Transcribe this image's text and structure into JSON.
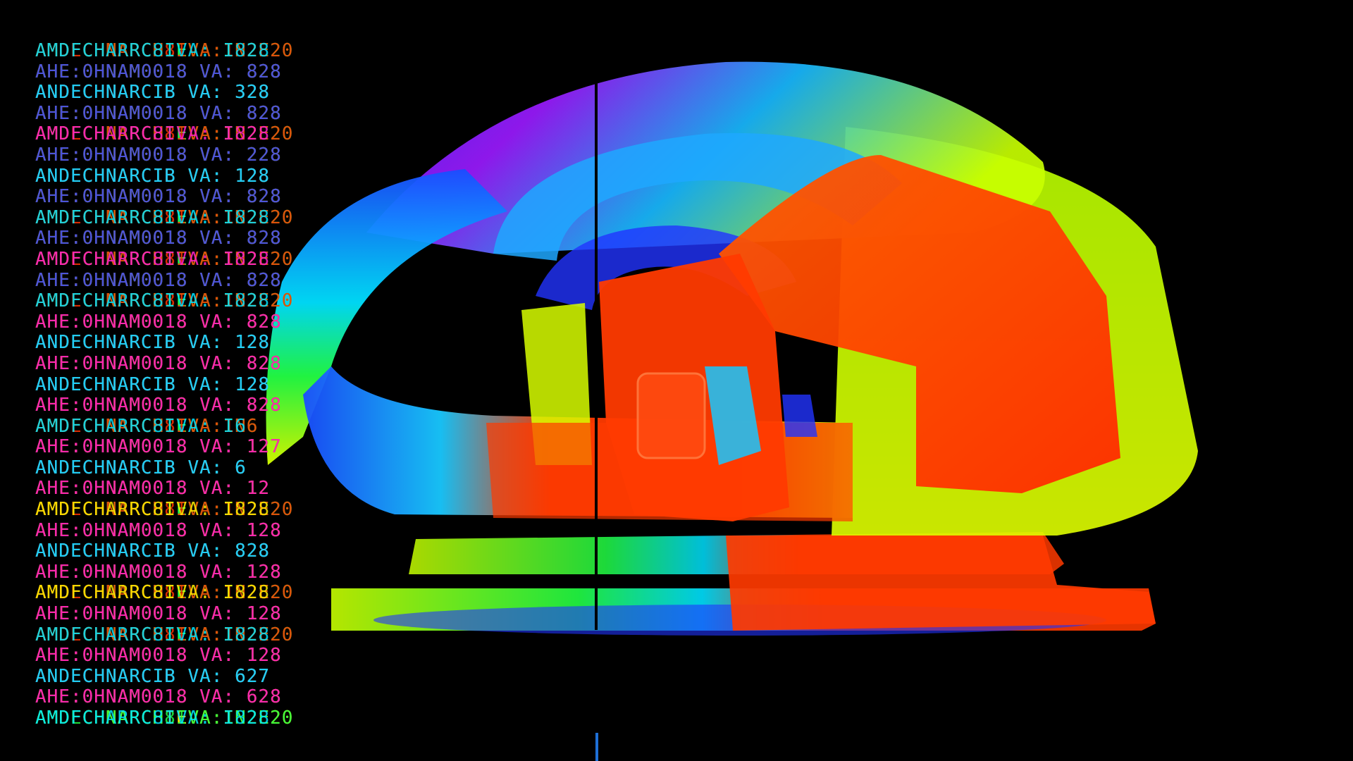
{
  "viewer": {
    "background": "#000000",
    "divider_color": "#000000",
    "cursor_color": "#1e6fd6"
  },
  "overlay": {
    "rows": [
      {
        "layers": [
          {
            "text": "AMDFCHNARCHIEVA:IN2E20",
            "color": "#22ff44"
          },
          {
            "text": "AMDECHNARCH8IVA:1N2E20",
            "color": "#ff3300"
          },
          {
            "text": "AMDFCHARRC8IVA: I828",
            "color": "#00e5ff"
          }
        ]
      },
      {
        "layers": [
          {
            "text": "AHE:0HNAM0018 VA: 828",
            "color": "#33ff33"
          },
          {
            "text": "AHE:0HNAM0018 VA: 828",
            "color": "#ff3300"
          },
          {
            "text": "AHE:0HNAM0018 VA: 828",
            "color": "#3355ff"
          }
        ]
      },
      {
        "layers": [
          {
            "text": "ANDECHNARCIB VA: 328",
            "color": "#33ff33"
          },
          {
            "text": "ANDECHNARCIB VA: 328",
            "color": "#ff22cc"
          },
          {
            "text": "ANDECHNARCIB VA: 328",
            "color": "#00e5ff"
          }
        ]
      },
      {
        "layers": [
          {
            "text": "AHE:0HNAM0018 VA: 828",
            "color": "#33ff33"
          },
          {
            "text": "AHE:0HNAM0018 VA: 828",
            "color": "#ff3300"
          },
          {
            "text": "AHE:0HNAM0018 VA: 828",
            "color": "#3355ff"
          }
        ]
      },
      {
        "layers": [
          {
            "text": "AMDFCHNARCHIEVA:IN2E20",
            "color": "#22ff44"
          },
          {
            "text": "AMDECHNARCH8IVA:1N2E20",
            "color": "#ff3300"
          },
          {
            "text": "AMDFCHARRC8IVA: I828",
            "color": "#ff22cc"
          }
        ]
      },
      {
        "layers": [
          {
            "text": "AHE:0HNAM0018 VA: 228",
            "color": "#33ff33"
          },
          {
            "text": "AHE:0HNAM0018 VA: 228",
            "color": "#ff3300"
          },
          {
            "text": "AHE:0HNAM0018 VA: 228",
            "color": "#3355ff"
          }
        ]
      },
      {
        "layers": [
          {
            "text": "ANDECHNARCIB VA: 128",
            "color": "#33ff33"
          },
          {
            "text": "ANDECHNARCIB VA: 128",
            "color": "#ff22cc"
          },
          {
            "text": "ANDECHNARCIB VA: 128",
            "color": "#00e5ff"
          }
        ]
      },
      {
        "layers": [
          {
            "text": "AHE:0HNAM0018 VA: 828",
            "color": "#33ff33"
          },
          {
            "text": "AHE:0HNAM0018 VA: 828",
            "color": "#ff3300"
          },
          {
            "text": "AHE:0HNAM0018 VA: 828",
            "color": "#3355ff"
          }
        ]
      },
      {
        "layers": [
          {
            "text": "AMDFCHNARCHIEVA:IN2E20",
            "color": "#22ff44"
          },
          {
            "text": "AMDECHNARCH8IVA:1N2E20",
            "color": "#ff3300"
          },
          {
            "text": "AMDFCHARRC8IVA: I828",
            "color": "#00e5ff"
          }
        ]
      },
      {
        "layers": [
          {
            "text": "AHE:0HNAM0018 VA: 828",
            "color": "#33ff33"
          },
          {
            "text": "AHE:0HNAM0018 VA: 828",
            "color": "#ff3300"
          },
          {
            "text": "AHE:0HNAM0018 VA: 828",
            "color": "#3355ff"
          }
        ]
      },
      {
        "layers": [
          {
            "text": "AMDFCHNARCHIEVA:IN2E20",
            "color": "#22ff44"
          },
          {
            "text": "AMDECHNARCH8IVA:1N2E20",
            "color": "#ff3300"
          },
          {
            "text": "AMDFCHARRC8IVA: I828",
            "color": "#ff22cc"
          }
        ]
      },
      {
        "layers": [
          {
            "text": "AHE:0HNAM0018 VA: 828",
            "color": "#33ff33"
          },
          {
            "text": "AHE:0HNAM0018 VA: 828",
            "color": "#ff3300"
          },
          {
            "text": "AHE:0HNAM0018 VA: 828",
            "color": "#3355ff"
          }
        ]
      },
      {
        "layers": [
          {
            "text": "AMDFCHNARCHIEVA:IN2E20",
            "color": "#22ff44"
          },
          {
            "text": "AMDECHNARCH8IVA:1N2E20",
            "color": "#ff3300"
          },
          {
            "text": "AMDFCHARRC8IVA: I828",
            "color": "#00e5ff"
          }
        ]
      },
      {
        "layers": [
          {
            "text": "AHE:0HNAM0018 VA: 828",
            "color": "#33ff33"
          },
          {
            "text": "AHE:0HNAM0018 VA: 828",
            "color": "#ff3300"
          },
          {
            "text": "AHE:0HNAM0018 VA: 828",
            "color": "#ff22cc"
          }
        ]
      },
      {
        "layers": [
          {
            "text": "ANDECHNARCIB VA: 128",
            "color": "#33ff33"
          },
          {
            "text": "ANDECHNARCIB VA: 128",
            "color": "#ff22cc"
          },
          {
            "text": "ANDECHNARCIB VA: 128",
            "color": "#00e5ff"
          }
        ]
      },
      {
        "layers": [
          {
            "text": "AHE:0HNAM0018 VA: 828",
            "color": "#33ff33"
          },
          {
            "text": "AHE:0HNAM0018 VA: 828",
            "color": "#ff3300"
          },
          {
            "text": "AHE:0HNAM0018 VA: 828",
            "color": "#ff22cc"
          }
        ]
      },
      {
        "layers": [
          {
            "text": "ANDECHNARCIB VA: 128",
            "color": "#33ff33"
          },
          {
            "text": "ANDECHNARCIB VA: 128",
            "color": "#ff22cc"
          },
          {
            "text": "ANDECHNARCIB VA: 128",
            "color": "#00e5ff"
          }
        ]
      },
      {
        "layers": [
          {
            "text": "AHE:0HNAM0018 VA: 828",
            "color": "#33ff33"
          },
          {
            "text": "AHE:0HNAM0018 VA: 828",
            "color": "#ff3300"
          },
          {
            "text": "AHE:0HNAM0018 VA: 828",
            "color": "#ff22cc"
          }
        ]
      },
      {
        "layers": [
          {
            "text": "AMDFCHNARCHIEVA:IN6",
            "color": "#22ff44"
          },
          {
            "text": "AMDECHNARCH8IVA:1N6",
            "color": "#ff3300"
          },
          {
            "text": "AMDFCHARRC8IVA: I6",
            "color": "#00e5ff"
          }
        ]
      },
      {
        "layers": [
          {
            "text": "AHE:0HNAM0018 VA: 127",
            "color": "#33ff33"
          },
          {
            "text": "AHE:0HNAM0018 VA: 127",
            "color": "#ff3300"
          },
          {
            "text": "AHE:0HNAM0018 VA: 127",
            "color": "#ff22cc"
          }
        ]
      },
      {
        "layers": [
          {
            "text": "ANDECHNARCIB VA: 6",
            "color": "#33ff33"
          },
          {
            "text": "ANDECHNARCIB VA: 6",
            "color": "#ff22cc"
          },
          {
            "text": "ANDECHNARCIB VA: 6",
            "color": "#00e5ff"
          }
        ]
      },
      {
        "layers": [
          {
            "text": "AHE:0HNAM0018 VA: 12",
            "color": "#33ff33"
          },
          {
            "text": "AHE:0HNAM0018 VA: 12",
            "color": "#ff3300"
          },
          {
            "text": "AHE:0HNAM0018 VA: 12",
            "color": "#ff22cc"
          }
        ]
      },
      {
        "layers": [
          {
            "text": "AMDFCHNARCHIEVA:IN2E20",
            "color": "#22ff44"
          },
          {
            "text": "AMDECHNARCH8IVA:1N2E20",
            "color": "#ff3300"
          },
          {
            "text": "AMDFCHARRC8IVA: I828",
            "color": "#ffee00"
          }
        ]
      },
      {
        "layers": [
          {
            "text": "AHE:0HNAM0018 VA: 128",
            "color": "#33ff33"
          },
          {
            "text": "AHE:0HNAM0018 VA: 128",
            "color": "#ff3300"
          },
          {
            "text": "AHE:0HNAM0018 VA: 128",
            "color": "#ff22cc"
          }
        ]
      },
      {
        "layers": [
          {
            "text": "ANDECHNARCIB VA: 828",
            "color": "#33ff33"
          },
          {
            "text": "ANDECHNARCIB VA: 828",
            "color": "#ff22cc"
          },
          {
            "text": "ANDECHNARCIB VA: 828",
            "color": "#00e5ff"
          }
        ]
      },
      {
        "layers": [
          {
            "text": "AHE:0HNAM0018 VA: 128",
            "color": "#33ff33"
          },
          {
            "text": "AHE:0HNAM0018 VA: 128",
            "color": "#ff3300"
          },
          {
            "text": "AHE:0HNAM0018 VA: 128",
            "color": "#ff22cc"
          }
        ]
      },
      {
        "layers": [
          {
            "text": "AMDFCHNARCHIEVA:IN2E20",
            "color": "#22ff44"
          },
          {
            "text": "AMDECHNARCH8IVA:1N2E20",
            "color": "#ff3300"
          },
          {
            "text": "AMDFCHARRC8IVA: I828",
            "color": "#ffee00"
          }
        ]
      },
      {
        "layers": [
          {
            "text": "AHE:0HNAM0018 VA: 128",
            "color": "#33ff33"
          },
          {
            "text": "AHE:0HNAM0018 VA: 128",
            "color": "#ff3300"
          },
          {
            "text": "AHE:0HNAM0018 VA: 128",
            "color": "#ff22cc"
          }
        ]
      },
      {
        "layers": [
          {
            "text": "AMDFCHNARCHIEVA:IN2E20",
            "color": "#22ff44"
          },
          {
            "text": "AMDECHNARCH8IVA:1N2E20",
            "color": "#ff3300"
          },
          {
            "text": "AMDFCHARRC8IVA: I828",
            "color": "#00e5ff"
          }
        ]
      },
      {
        "layers": [
          {
            "text": "AHE:0HNAM0018 VA: 128",
            "color": "#33ff33"
          },
          {
            "text": "AHE:0HNAM0018 VA: 128",
            "color": "#ff3300"
          },
          {
            "text": "AHE:0HNAM0018 VA: 128",
            "color": "#ff22cc"
          }
        ]
      },
      {
        "layers": [
          {
            "text": "ANDECHNARCIB VA: 627",
            "color": "#33ff33"
          },
          {
            "text": "ANDECHNARCIB VA: 627",
            "color": "#ff22cc"
          },
          {
            "text": "ANDECHNARCIB VA: 627",
            "color": "#00e5ff"
          }
        ]
      },
      {
        "layers": [
          {
            "text": "AHE:0HNAM0018 VA: 628",
            "color": "#33ff33"
          },
          {
            "text": "AHE:0HNAM0018 VA: 628",
            "color": "#ff3300"
          },
          {
            "text": "AHE:0HNAM0018 VA: 628",
            "color": "#ff22cc"
          }
        ]
      },
      {
        "layers": [
          {
            "text": "AMDFCHNARCHIEVA:IN2E20",
            "color": "#ffee00"
          },
          {
            "text": "AMDECHNARCH8IVA:1N2E20",
            "color": "#22ff44"
          },
          {
            "text": "AMDFCHARRC8IVA: I828",
            "color": "#00e5ff"
          }
        ]
      }
    ]
  }
}
